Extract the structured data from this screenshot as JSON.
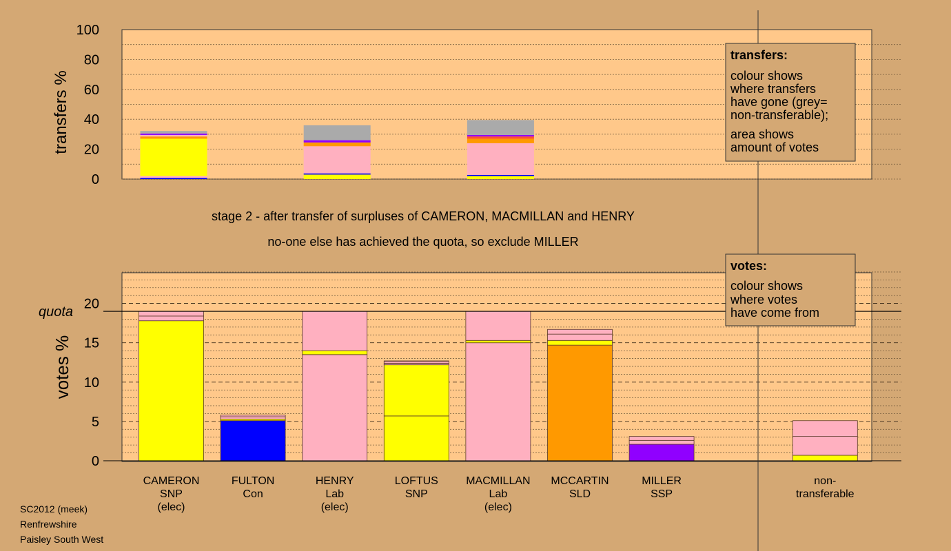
{
  "chart_data": [
    {
      "type": "bar",
      "stacked": true,
      "ylabel": "transfers %",
      "ylim": [
        0,
        100
      ],
      "yticks": [
        "0",
        "20",
        "40",
        "60",
        "80",
        "100"
      ],
      "bars": [
        {
          "x": 1,
          "segments": [
            {
              "value": 0.8,
              "color": "#0000ff"
            },
            {
              "value": 1.2,
              "color": "#ffb0c0"
            },
            {
              "value": 25.0,
              "color": "#ffff00"
            },
            {
              "value": 1.5,
              "color": "#ff9900"
            },
            {
              "value": 1.0,
              "color": "#ffb0c0"
            },
            {
              "value": 1.0,
              "color": "#9000ff"
            },
            {
              "value": 1.7,
              "color": "#aaaaaa"
            }
          ]
        },
        {
          "x": 3,
          "segments": [
            {
              "value": 3.0,
              "color": "#ffff00"
            },
            {
              "value": 0.8,
              "color": "#0000ff"
            },
            {
              "value": 18.2,
              "color": "#ffb0c0"
            },
            {
              "value": 2.5,
              "color": "#ff9900"
            },
            {
              "value": 1.5,
              "color": "#9000ff"
            },
            {
              "value": 10.0,
              "color": "#aaaaaa"
            }
          ]
        },
        {
          "x": 5,
          "segments": [
            {
              "value": 2.0,
              "color": "#ffff00"
            },
            {
              "value": 0.8,
              "color": "#0000ff"
            },
            {
              "value": 21.2,
              "color": "#ffb0c0"
            },
            {
              "value": 3.0,
              "color": "#ff9900"
            },
            {
              "value": 1.5,
              "color": "#ff5030"
            },
            {
              "value": 1.0,
              "color": "#9000ff"
            },
            {
              "value": 10.0,
              "color": "#aaaaaa"
            }
          ]
        }
      ]
    },
    {
      "type": "bar",
      "stacked": true,
      "ylabel": "votes %",
      "ylim": [
        0,
        24
      ],
      "yticks": [
        "0",
        "5",
        "10",
        "15",
        "20"
      ],
      "quota": 19.0,
      "quota_label": "quota",
      "bars": [
        {
          "x": 1,
          "line1": "CAMERON",
          "line2": "SNP",
          "line3": "(elec)",
          "segments": [
            {
              "value": 17.8,
              "color": "#ffff00"
            },
            {
              "value": 0.6,
              "color": "#ffb0c0"
            },
            {
              "value": 0.6,
              "color": "#ffb0c0"
            }
          ]
        },
        {
          "x": 2,
          "line1": "FULTON",
          "line2": "Con",
          "line3": "",
          "segments": [
            {
              "value": 5.1,
              "color": "#0000ff"
            },
            {
              "value": 0.2,
              "color": "#ffff00"
            },
            {
              "value": 0.3,
              "color": "#ffb0c0"
            },
            {
              "value": 0.2,
              "color": "#ffb0c0"
            }
          ]
        },
        {
          "x": 3,
          "line1": "HENRY",
          "line2": "Lab",
          "line3": "(elec)",
          "segments": [
            {
              "value": 13.5,
              "color": "#ffb0c0"
            },
            {
              "value": 0.5,
              "color": "#ffff00"
            },
            {
              "value": 5.0,
              "color": "#ffb0c0"
            }
          ]
        },
        {
          "x": 4,
          "line1": "LOFTUS",
          "line2": "SNP",
          "line3": "",
          "segments": [
            {
              "value": 5.7,
              "color": "#ffff00"
            },
            {
              "value": 6.5,
              "color": "#ffff00"
            },
            {
              "value": 0.2,
              "color": "#ffb0c0"
            },
            {
              "value": 0.2,
              "color": "#ffb0c0"
            },
            {
              "value": 0.1,
              "color": "#ffb0c0"
            }
          ]
        },
        {
          "x": 5,
          "line1": "MACMILLAN",
          "line2": "Lab",
          "line3": "(elec)",
          "segments": [
            {
              "value": 15.0,
              "color": "#ffb0c0"
            },
            {
              "value": 0.3,
              "color": "#ffff00"
            },
            {
              "value": 3.7,
              "color": "#ffb0c0"
            }
          ]
        },
        {
          "x": 6,
          "line1": "MCCARTIN",
          "line2": "SLD",
          "line3": "",
          "segments": [
            {
              "value": 14.7,
              "color": "#ff9900"
            },
            {
              "value": 0.6,
              "color": "#ffff00"
            },
            {
              "value": 0.8,
              "color": "#ffb0c0"
            },
            {
              "value": 0.6,
              "color": "#ffb0c0"
            }
          ]
        },
        {
          "x": 7,
          "line1": "MILLER",
          "line2": "SSP",
          "line3": "",
          "segments": [
            {
              "value": 2.1,
              "color": "#9000ff"
            },
            {
              "value": 0.5,
              "color": "#ffb0c0"
            },
            {
              "value": 0.5,
              "color": "#ffb0c0"
            }
          ]
        },
        {
          "x": 9,
          "line1": "non-",
          "line2": "transferable",
          "line3": "",
          "segments": [
            {
              "value": 0.7,
              "color": "#ffff00"
            },
            {
              "value": 2.4,
              "color": "#ffb0c0"
            },
            {
              "value": 2.0,
              "color": "#ffb0c0"
            }
          ]
        }
      ]
    }
  ],
  "stage_text": "stage 2 - after transfer of surpluses of CAMERON, MACMILLAN and HENRY",
  "exclude_text": "no-one else has achieved the quota, so exclude MILLER",
  "transfers_legend": {
    "title": "transfers:",
    "lines": [
      "colour shows",
      "where transfers",
      "have gone (grey=",
      "non-transferable);",
      "area shows",
      "amount of votes"
    ]
  },
  "votes_legend": {
    "title": "votes:",
    "lines": [
      "colour shows",
      "where votes",
      "have come from"
    ]
  },
  "footer": [
    "SC2012 (meek)",
    "Renfrewshire",
    "Paisley South West"
  ],
  "colors": {
    "background": "#d4a874",
    "plot_area": "#ffc88a",
    "snp": "#ffff00",
    "con": "#0000ff",
    "lab": "#ffb0c0",
    "sld": "#ff9900",
    "ssp": "#9000ff",
    "non_transferable": "#aaaaaa"
  }
}
